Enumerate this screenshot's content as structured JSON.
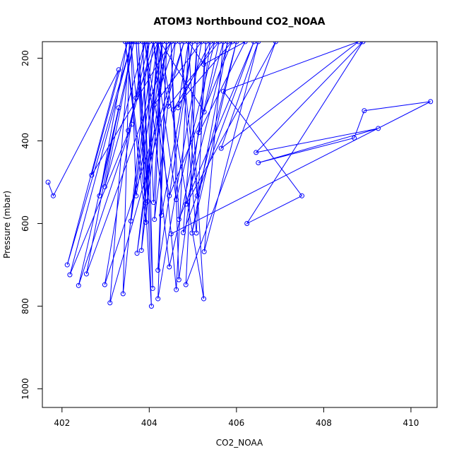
{
  "chart_data": {
    "type": "line",
    "title": "ATOM3 Northbound CO2_NOAA",
    "xlabel": "CO2_NOAA",
    "ylabel": "Pressure (mbar)",
    "xlim": [
      401.55,
      410.6
    ],
    "ylim": [
      1045,
      160
    ],
    "y_reversed": true,
    "x_ticks": [
      402,
      404,
      406,
      408,
      410
    ],
    "y_ticks": [
      200,
      400,
      600,
      800,
      1000
    ],
    "grid": false,
    "series": [
      {
        "color": "#0000ff",
        "points": [
          [
            401.68,
            500
          ],
          [
            401.8,
            533
          ],
          [
            403.3,
            228
          ],
          [
            402.12,
            700
          ],
          [
            403.6,
            160
          ],
          [
            402.18,
            724
          ],
          [
            403.6,
            360
          ],
          [
            402.38,
            750
          ],
          [
            403.3,
            320
          ],
          [
            402.56,
            722
          ],
          [
            404.5,
            160
          ],
          [
            402.68,
            483
          ],
          [
            403.5,
            160
          ],
          [
            402.86,
            533
          ],
          [
            403.65,
            160
          ],
          [
            402.98,
            511
          ],
          [
            403.9,
            160
          ],
          [
            402.98,
            748
          ],
          [
            404.8,
            160
          ],
          [
            403.1,
            792
          ],
          [
            403.55,
            160
          ],
          [
            403.4,
            770
          ],
          [
            404.0,
            160
          ],
          [
            403.52,
            375
          ],
          [
            404.1,
            160
          ],
          [
            403.58,
            594
          ],
          [
            404.2,
            160
          ],
          [
            403.7,
            296
          ],
          [
            403.58,
            160
          ],
          [
            403.7,
            533
          ],
          [
            404.3,
            160
          ],
          [
            403.72,
            672
          ],
          [
            404.4,
            160
          ],
          [
            403.82,
            665
          ],
          [
            404.2,
            160
          ],
          [
            403.92,
            597
          ],
          [
            403.45,
            160
          ],
          [
            403.92,
            550
          ],
          [
            403.75,
            160
          ],
          [
            403.97,
            546
          ],
          [
            403.7,
            160
          ],
          [
            404.05,
            800
          ],
          [
            403.85,
            160
          ],
          [
            404.08,
            757
          ],
          [
            403.95,
            160
          ],
          [
            404.1,
            549
          ],
          [
            404.3,
            160
          ],
          [
            404.12,
            590
          ],
          [
            404.6,
            160
          ],
          [
            404.12,
            312
          ],
          [
            405.2,
            160
          ],
          [
            404.2,
            782
          ],
          [
            404.4,
            160
          ],
          [
            404.2,
            713
          ],
          [
            405.0,
            160
          ],
          [
            404.28,
            580
          ],
          [
            404.2,
            160
          ],
          [
            404.44,
            316
          ],
          [
            405.6,
            160
          ],
          [
            404.46,
            705
          ],
          [
            403.9,
            160
          ],
          [
            404.46,
            533
          ],
          [
            405.9,
            160
          ],
          [
            404.55,
            325
          ],
          [
            405.5,
            160
          ],
          [
            404.62,
            542
          ],
          [
            404.1,
            160
          ],
          [
            404.62,
            760
          ],
          [
            404.9,
            160
          ],
          [
            404.66,
            320
          ],
          [
            405.4,
            160
          ],
          [
            404.68,
            736
          ],
          [
            404.5,
            160
          ],
          [
            404.68,
            590
          ],
          [
            406.4,
            160
          ],
          [
            404.78,
            622
          ],
          [
            405.1,
            160
          ],
          [
            404.84,
            748
          ],
          [
            406.9,
            160
          ],
          [
            404.85,
            553
          ],
          [
            405.8,
            160
          ],
          [
            404.98,
            623
          ],
          [
            406.0,
            160
          ],
          [
            405.1,
            533
          ],
          [
            404.7,
            160
          ],
          [
            405.08,
            623
          ],
          [
            405.3,
            160
          ],
          [
            405.14,
            380
          ],
          [
            406.2,
            160
          ],
          [
            405.25,
            215
          ],
          [
            404.9,
            160
          ],
          [
            405.25,
            782
          ],
          [
            404.25,
            160
          ],
          [
            405.26,
            330
          ],
          [
            405.7,
            160
          ],
          [
            405.26,
            668
          ],
          [
            406.5,
            160
          ],
          [
            405.65,
            418
          ],
          [
            408.8,
            160
          ],
          [
            405.7,
            280
          ],
          [
            407.5,
            533
          ],
          [
            406.24,
            600
          ],
          [
            408.9,
            160
          ],
          [
            406.45,
            428
          ],
          [
            409.25,
            370
          ],
          [
            406.5,
            453
          ],
          [
            408.7,
            393
          ],
          [
            408.93,
            327
          ],
          [
            410.45,
            305
          ],
          [
            404.5,
            625
          ]
        ]
      }
    ]
  }
}
